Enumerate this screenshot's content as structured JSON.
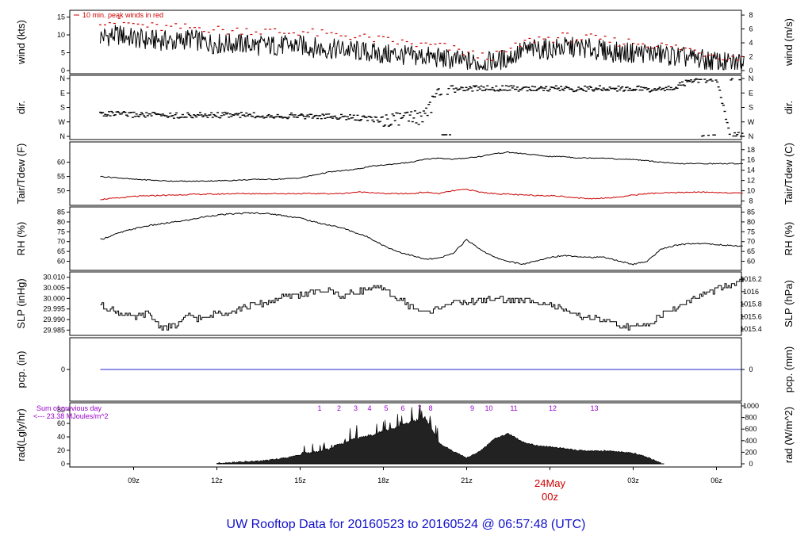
{
  "title": "UW Rooftop Data for 20160523  to  20160524 @ 06:57:48  (UTC)",
  "time_axis": {
    "ticks": [
      "09z",
      "12z",
      "15z",
      "18z",
      "21z",
      "03z",
      "06z"
    ],
    "date_label": "24May",
    "date_sub": "00z"
  },
  "notes": {
    "wind": "10 min. peak winds in red",
    "rad_line1": "Sum of previous day",
    "rad_line2": "<--- 23.38 MJoules/m^2"
  },
  "colors": {
    "red": "#cc0000",
    "blue": "#2222cc",
    "purple": "#9900cc",
    "footer": "#1111cc"
  },
  "chart_data": [
    {
      "type": "line",
      "panel": "wind",
      "ylabel": "wind (kts)",
      "ylabel_right": "wind (m/s)",
      "ylim": [
        0,
        16
      ],
      "left_ticks": [
        "0",
        "5",
        "10",
        "15"
      ],
      "right_ticks": [
        "0",
        "2",
        "4",
        "6",
        "8"
      ],
      "x": [
        7.8,
        8.5,
        9,
        9.5,
        10,
        10.5,
        11,
        11.5,
        12,
        12.5,
        13,
        13.5,
        14,
        14.5,
        15,
        15.5,
        16,
        16.5,
        17,
        17.5,
        18,
        18.5,
        19,
        19.5,
        20,
        20.5,
        21,
        21.5,
        22,
        22.5,
        23,
        23.5,
        24,
        24.5,
        25,
        25.5,
        26,
        26.5,
        27,
        27.5,
        28,
        28.5,
        29,
        29.5,
        30,
        30.5,
        31
      ],
      "series": [
        {
          "name": "wind",
          "values": [
            9.5,
            10,
            9,
            8.5,
            8.5,
            8,
            9,
            8,
            7.5,
            7.5,
            7.5,
            7,
            7,
            7,
            7,
            6.5,
            6,
            6,
            5.5,
            5,
            4.5,
            4.5,
            4,
            4,
            3.5,
            3,
            2.5,
            2,
            2.5,
            3.5,
            5.5,
            6,
            6,
            6.5,
            6.5,
            6,
            5.5,
            5,
            5,
            5,
            4.5,
            4,
            3.5,
            3,
            2.5,
            2,
            2.5
          ]
        },
        {
          "name": "peak",
          "values": [
            14,
            13.5,
            13,
            12.5,
            12,
            12,
            12,
            12,
            11.5,
            11,
            11.5,
            11,
            11,
            10.5,
            11,
            10.5,
            10,
            10,
            9.5,
            9,
            8.5,
            8,
            7.5,
            7,
            7,
            6,
            5,
            4,
            4,
            5.5,
            7.5,
            9,
            9,
            9.5,
            9,
            9,
            8.5,
            8,
            8,
            7.5,
            7,
            6.5,
            6,
            5,
            4.5,
            3.5,
            4
          ]
        }
      ]
    },
    {
      "type": "scatter",
      "panel": "dir",
      "ylabel": "dir.",
      "ylabel_right": "dir.",
      "left_ticks": [
        "N",
        "W",
        "S",
        "E",
        "N"
      ],
      "right_ticks": [
        "N",
        "W",
        "S",
        "E",
        "N"
      ],
      "ylim": [
        0,
        360
      ],
      "x": [
        7.8,
        8.5,
        9,
        9.5,
        10,
        10.5,
        11,
        11.5,
        12,
        12.5,
        13,
        13.5,
        14,
        14.5,
        15,
        15.5,
        16,
        16.5,
        17,
        17.5,
        18,
        18.5,
        19,
        19.5,
        20,
        20.5,
        21,
        21.5,
        22,
        22.5,
        23,
        23.5,
        24,
        24.5,
        25,
        25.5,
        26,
        26.5,
        27,
        27.5,
        28,
        28.5,
        29,
        29.5,
        30,
        30.5,
        31
      ],
      "values": [
        218,
        222,
        225,
        225,
        228,
        230,
        230,
        228,
        228,
        226,
        228,
        230,
        230,
        232,
        232,
        235,
        238,
        240,
        245,
        250,
        255,
        250,
        245,
        240,
        80,
        70,
        65,
        60,
        60,
        62,
        62,
        62,
        63,
        62,
        65,
        62,
        62,
        62,
        62,
        65,
        70,
        55,
        20,
        10,
        5,
        355,
        350
      ]
    },
    {
      "type": "line",
      "panel": "temp",
      "ylabel": "Tair/Tdew (F)",
      "ylabel_right": "Tair/Tdew (C)",
      "ylim": [
        46,
        66
      ],
      "left_ticks": [
        "50",
        "55",
        "60"
      ],
      "right_ticks": [
        "8",
        "10",
        "12",
        "14",
        "16",
        "18"
      ],
      "x": [
        7.8,
        8.5,
        9,
        9.5,
        10,
        10.5,
        11,
        11.5,
        12,
        12.5,
        13,
        13.5,
        14,
        14.5,
        15,
        15.5,
        16,
        16.5,
        17,
        17.5,
        18,
        18.5,
        19,
        19.5,
        20,
        20.5,
        21,
        21.5,
        22,
        22.5,
        23,
        23.5,
        24,
        24.5,
        25,
        25.5,
        26,
        26.5,
        27,
        27.5,
        28,
        28.5,
        29,
        29.5,
        30,
        30.5,
        31
      ],
      "series": [
        {
          "name": "Tair",
          "values": [
            55,
            54.5,
            54,
            53.8,
            53.5,
            53.4,
            53.3,
            53.4,
            53.5,
            53.6,
            53.8,
            54,
            54,
            54.2,
            54.5,
            55.5,
            56.5,
            57,
            57.5,
            58.5,
            59,
            59.5,
            60,
            61,
            61.5,
            61,
            61.5,
            62,
            63,
            63.5,
            63,
            62.5,
            62,
            62,
            61.5,
            61.5,
            61.5,
            61,
            61,
            60.5,
            60,
            59.5,
            59.5,
            59.5,
            59.5,
            59.5,
            59.5
          ]
        },
        {
          "name": "Tdew",
          "values": [
            47,
            47.5,
            48,
            48.2,
            48.4,
            48.5,
            48.7,
            48.8,
            48.8,
            49,
            49,
            49,
            49,
            49,
            49,
            49,
            49,
            49,
            49.5,
            49.5,
            49,
            49,
            49,
            49.5,
            49,
            50,
            50.5,
            49.5,
            49,
            48.8,
            48.5,
            48.4,
            48.3,
            48,
            47.5,
            47.2,
            47.5,
            47.8,
            48.5,
            49,
            49.2,
            49.3,
            49.5,
            49.5,
            49.4,
            49.3,
            49
          ]
        }
      ]
    },
    {
      "type": "line",
      "panel": "rh",
      "ylabel": "RH (%)",
      "ylabel_right": "RH (%)",
      "ylim": [
        57,
        86
      ],
      "left_ticks": [
        "60",
        "65",
        "70",
        "75",
        "80",
        "85"
      ],
      "right_ticks": [
        "60",
        "65",
        "70",
        "75",
        "80",
        "85"
      ],
      "x": [
        7.8,
        8.5,
        9,
        9.5,
        10,
        10.5,
        11,
        11.5,
        12,
        12.5,
        13,
        13.5,
        14,
        14.5,
        15,
        15.5,
        16,
        16.5,
        17,
        17.5,
        18,
        18.5,
        19,
        19.5,
        20,
        20.5,
        21,
        21.5,
        22,
        22.5,
        23,
        23.5,
        24,
        24.5,
        25,
        25.5,
        26,
        26.5,
        27,
        27.5,
        28,
        28.5,
        29,
        29.5,
        30,
        30.5,
        31
      ],
      "values": [
        71,
        74.5,
        76.5,
        78,
        79,
        80,
        81,
        82.5,
        83.5,
        84,
        84.5,
        84.5,
        84,
        83,
        82,
        80,
        78.5,
        77,
        74.5,
        72,
        68,
        65,
        63,
        61,
        61.5,
        64,
        71,
        66,
        62,
        60,
        58.5,
        60,
        62,
        63,
        62.5,
        62,
        62,
        60,
        58.5,
        60,
        66,
        68,
        69,
        69,
        68.5,
        68,
        67.5
      ]
    },
    {
      "type": "line",
      "panel": "slp",
      "ylabel": "SLP (inHg)",
      "ylabel_right": "SLP (hPa)",
      "ylim": [
        29.984,
        30.011
      ],
      "left_ticks": [
        "29.985",
        "29.990",
        "29.995",
        "30.000",
        "30.005",
        "30.010"
      ],
      "right_ticks": [
        "1015.4",
        "1015.6",
        "1015.8",
        "1016",
        "1016.2"
      ],
      "x": [
        7.8,
        8.5,
        9,
        9.5,
        10,
        10.5,
        11,
        11.5,
        12,
        12.5,
        13,
        13.5,
        14,
        14.5,
        15,
        15.5,
        16,
        16.5,
        17,
        17.5,
        18,
        18.5,
        19,
        19.5,
        20,
        20.5,
        21,
        21.5,
        22,
        22.5,
        23,
        23.5,
        24,
        24.5,
        25,
        25.5,
        26,
        26.5,
        27,
        27.5,
        28,
        28.5,
        29,
        29.5,
        30,
        30.5,
        31
      ],
      "values": [
        29.997,
        29.993,
        29.991,
        29.993,
        29.986,
        29.987,
        29.992,
        29.99,
        29.993,
        29.994,
        29.996,
        29.997,
        29.999,
        30.001,
        30.002,
        30.003,
        30.004,
        30.001,
        30.003,
        30.005,
        30.004,
        30.0,
        29.996,
        29.993,
        29.996,
        29.998,
        29.998,
        29.999,
        30.0,
        29.999,
        29.999,
        29.999,
        29.997,
        29.994,
        29.992,
        29.991,
        29.989,
        29.987,
        29.986,
        29.988,
        29.992,
        29.995,
        29.999,
        30.002,
        30.004,
        30.006,
        30.01
      ]
    },
    {
      "type": "line",
      "panel": "pcp",
      "ylabel": "pcp. (in)",
      "ylabel_right": "pcp. (mm)",
      "ylim": [
        -1,
        1
      ],
      "left_ticks": [
        "0"
      ],
      "right_ticks": [
        "0"
      ],
      "x": [
        7.8,
        31
      ],
      "values": [
        0,
        0
      ]
    },
    {
      "type": "area",
      "panel": "rad",
      "ylabel": "rad(Lgly/hr)",
      "ylabel_right": "rad (W/m^2)",
      "ylim": [
        0,
        86
      ],
      "left_ticks": [
        "0",
        "20",
        "40",
        "60",
        "80"
      ],
      "right_ticks": [
        "0",
        "200",
        "400",
        "600",
        "800",
        "1000"
      ],
      "x": [
        12,
        12.5,
        13,
        13.5,
        14,
        14.5,
        15,
        15.5,
        16,
        16.5,
        17,
        17.5,
        18,
        18.5,
        19,
        19.5,
        20,
        20.5,
        21,
        21.5,
        22,
        22.5,
        23,
        23.5,
        24,
        24.5,
        25,
        25.5,
        26,
        26.5,
        27,
        27.5,
        28
      ],
      "values": [
        0,
        1,
        2,
        3,
        5,
        8,
        12,
        15,
        20,
        28,
        35,
        40,
        46,
        52,
        60,
        67,
        30,
        18,
        8,
        18,
        36,
        44,
        32,
        26,
        24,
        22,
        19,
        18,
        18,
        17,
        15,
        9,
        0
      ],
      "hour_markers": {
        "x": [
          15.7,
          16.4,
          17.0,
          17.5,
          18.1,
          18.7,
          19.3,
          19.7,
          21.2,
          21.8,
          22.7,
          24.1,
          25.6
        ],
        "labels": [
          "1",
          "2",
          "3",
          "4",
          "5",
          "6",
          "7",
          "8",
          "9",
          "10",
          "11",
          "12",
          "13"
        ]
      }
    }
  ]
}
